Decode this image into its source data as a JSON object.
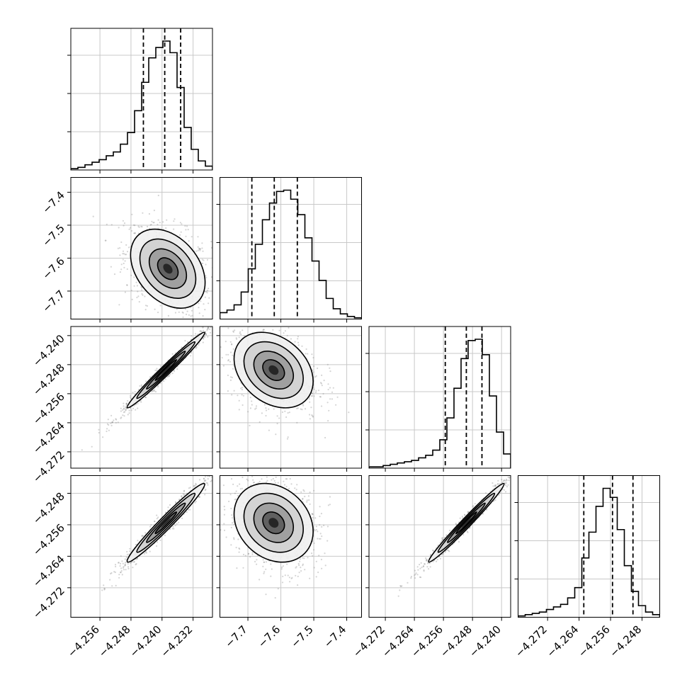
{
  "chart_data": {
    "type": "corner",
    "title": "",
    "parameters": [
      {
        "name": "",
        "range": [
          -4.2635,
          -4.227
        ],
        "x_ticks": [
          -4.256,
          -4.248,
          -4.24,
          -4.232
        ],
        "x_tick_labels": [
          "−4.256",
          "−4.248",
          "−4.240",
          "−4.232"
        ],
        "quantiles": [
          -4.2448,
          -4.2393,
          -4.2352
        ],
        "histogram": [
          0.01,
          0.02,
          0.04,
          0.06,
          0.08,
          0.11,
          0.14,
          0.2,
          0.29,
          0.46,
          0.68,
          0.87,
          0.95,
          1.0,
          0.91,
          0.64,
          0.33,
          0.16,
          0.07,
          0.03
        ],
        "median": -4.2393
      },
      {
        "name": "",
        "range": [
          -7.785,
          -7.355
        ],
        "x_ticks": [
          -7.7,
          -7.6,
          -7.5,
          -7.4
        ],
        "x_tick_labels": [
          "−7.7",
          "−7.6",
          "−7.5",
          "−7.4"
        ],
        "y_ticks": [
          -7.4,
          -7.5,
          -7.6,
          -7.7
        ],
        "y_tick_labels": [
          "−7.4",
          "−7.5",
          "−7.6",
          "−7.7"
        ],
        "quantiles": [
          -7.688,
          -7.62,
          -7.55
        ],
        "histogram": [
          0.05,
          0.07,
          0.11,
          0.21,
          0.39,
          0.58,
          0.77,
          0.9,
          0.99,
          1.0,
          0.93,
          0.81,
          0.63,
          0.45,
          0.3,
          0.16,
          0.08,
          0.04,
          0.02,
          0.01
        ],
        "median": -7.62
      },
      {
        "name": "",
        "range": [
          -4.2765,
          -4.2375
        ],
        "x_ticks": [
          -4.272,
          -4.264,
          -4.256,
          -4.248,
          -4.24
        ],
        "x_tick_labels": [
          "−4.272",
          "−4.264",
          "−4.256",
          "−4.248",
          "−4.240"
        ],
        "y_ticks": [
          -4.24,
          -4.248,
          -4.256,
          -4.264,
          -4.272
        ],
        "y_tick_labels": [
          "−4.240",
          "−4.248",
          "−4.256",
          "−4.264",
          "−4.272"
        ],
        "quantiles": [
          -4.2555,
          -4.2497,
          -4.2454
        ],
        "histogram": [
          0.01,
          0.01,
          0.02,
          0.03,
          0.04,
          0.05,
          0.06,
          0.08,
          0.1,
          0.14,
          0.22,
          0.39,
          0.62,
          0.85,
          0.99,
          1.0,
          0.88,
          0.56,
          0.28,
          0.11
        ],
        "median": -4.2497
      },
      {
        "name": "",
        "range": [
          -4.2795,
          -4.2435
        ],
        "x_ticks": [
          -4.272,
          -4.264,
          -4.256,
          -4.248
        ],
        "x_tick_labels": [
          "−4.272",
          "−4.264",
          "−4.256",
          "−4.248"
        ],
        "y_ticks": [
          -4.248,
          -4.256,
          -4.264,
          -4.272
        ],
        "y_tick_labels": [
          "−4.248",
          "−4.256",
          "−4.264",
          "−4.272"
        ],
        "quantiles": [
          -4.2628,
          -4.2555,
          -4.2503
        ],
        "histogram": [
          0.01,
          0.02,
          0.03,
          0.04,
          0.06,
          0.08,
          0.1,
          0.15,
          0.23,
          0.46,
          0.66,
          0.86,
          1.0,
          0.93,
          0.68,
          0.4,
          0.2,
          0.09,
          0.04,
          0.02
        ],
        "median": -4.2555
      }
    ],
    "pairs": [
      {
        "row": 1,
        "col": 0,
        "center": [
          -4.2385,
          -7.632
        ],
        "sigma": [
          0.0048,
          0.06
        ],
        "rho": -0.35
      },
      {
        "row": 2,
        "col": 0,
        "center": [
          -4.239,
          -4.2495
        ],
        "sigma": [
          0.005,
          0.0052
        ],
        "rho": 0.985
      },
      {
        "row": 2,
        "col": 1,
        "center": [
          -7.622,
          -4.2495
        ],
        "sigma": [
          0.06,
          0.0052
        ],
        "rho": -0.3
      },
      {
        "row": 3,
        "col": 0,
        "center": [
          -4.239,
          -4.2555
        ],
        "sigma": [
          0.005,
          0.005
        ],
        "rho": 0.975
      },
      {
        "row": 3,
        "col": 1,
        "center": [
          -7.622,
          -4.2555
        ],
        "sigma": [
          0.06,
          0.005
        ],
        "rho": -0.22
      },
      {
        "row": 3,
        "col": 2,
        "center": [
          -4.2497,
          -4.2555
        ],
        "sigma": [
          0.0052,
          0.005
        ],
        "rho": 0.985
      }
    ],
    "colors": {
      "hist": "#000000",
      "quantile": "#000000",
      "points": "#888888",
      "grid": "#c8c8c8",
      "contour": "#000000"
    },
    "grid": true
  }
}
